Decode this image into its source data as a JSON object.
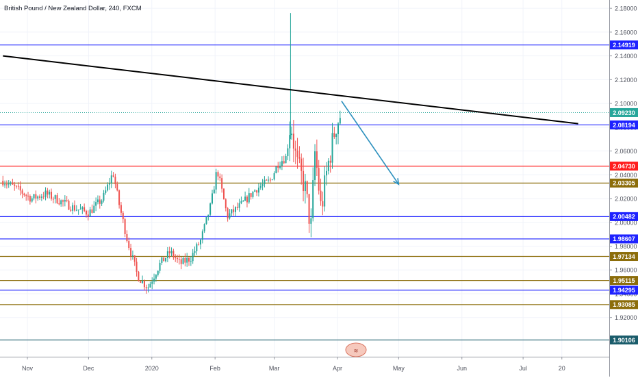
{
  "chart_data": {
    "type": "candlestick",
    "title": "British Pound / New Zealand Dollar, 240, FXCM",
    "symbol": "GBPNZD",
    "xlabel": "",
    "ylabel": "",
    "x_ticks": [
      "Nov",
      "Dec",
      "2020",
      "Feb",
      "Mar",
      "Apr",
      "May",
      "Jun",
      "Jul",
      "20"
    ],
    "y_ticks": [
      "1.92000",
      "1.94000",
      "1.96000",
      "1.98000",
      "2.00000",
      "2.02000",
      "2.04000",
      "2.06000",
      "2.08000",
      "2.10000",
      "2.12000",
      "2.14000",
      "2.16000",
      "2.18000"
    ],
    "ylim": [
      1.887,
      2.187
    ],
    "current_price": "2.09230",
    "grid": true,
    "colors": {
      "up": "#26a69a",
      "down": "#ef5350",
      "axis_bg": "#ffffff"
    },
    "horizontal_levels": [
      {
        "value": 2.14919,
        "label": "2.14919",
        "color": "#1e22ff"
      },
      {
        "value": 2.08194,
        "label": "2.08194",
        "color": "#1e22ff"
      },
      {
        "value": 2.0473,
        "label": "2.04730",
        "color": "#ff1e1e"
      },
      {
        "value": 2.03305,
        "label": "2.03305",
        "color": "#8c6d0a"
      },
      {
        "value": 2.00482,
        "label": "2.00482",
        "color": "#1e22ff"
      },
      {
        "value": 1.98607,
        "label": "1.98607",
        "color": "#1e22ff"
      },
      {
        "value": 1.97134,
        "label": "1.97134",
        "color": "#8c6d0a"
      },
      {
        "value": 1.95115,
        "label": "1.95115",
        "color": "#8c6d0a"
      },
      {
        "value": 1.94295,
        "label": "1.94295",
        "color": "#1e22ff"
      },
      {
        "value": 1.93085,
        "label": "1.93085",
        "color": "#8c6d0a"
      },
      {
        "value": 1.90106,
        "label": "1.90106",
        "color": "#1a5c6b"
      }
    ],
    "trendline": {
      "start": [
        "2019-10-20",
        2.14
      ],
      "end": [
        "2020-07-28",
        2.083
      ],
      "color": "#000000"
    },
    "projection_arrow": {
      "start": [
        "2020-04-03",
        2.102
      ],
      "end": [
        "2020-05-01",
        2.032
      ],
      "color": "#2a8fbd"
    },
    "price_path": [
      [
        "2019-10-20",
        2.035
      ],
      [
        "2019-10-27",
        2.028
      ],
      [
        "2019-11-03",
        2.02
      ],
      [
        "2019-11-10",
        2.024
      ],
      [
        "2019-11-17",
        2.018
      ],
      [
        "2019-11-24",
        2.012
      ],
      [
        "2019-12-01",
        2.008
      ],
      [
        "2019-12-08",
        2.02
      ],
      [
        "2019-12-13",
        2.042
      ],
      [
        "2019-12-16",
        2.015
      ],
      [
        "2019-12-20",
        1.985
      ],
      [
        "2019-12-25",
        1.955
      ],
      [
        "2019-12-30",
        1.945
      ],
      [
        "2020-01-05",
        1.965
      ],
      [
        "2020-01-10",
        1.975
      ],
      [
        "2020-01-15",
        1.965
      ],
      [
        "2020-01-20",
        1.97
      ],
      [
        "2020-01-25",
        1.985
      ],
      [
        "2020-01-30",
        2.015
      ],
      [
        "2020-02-02",
        2.045
      ],
      [
        "2020-02-07",
        2.005
      ],
      [
        "2020-02-14",
        2.015
      ],
      [
        "2020-02-21",
        2.028
      ],
      [
        "2020-02-28",
        2.035
      ],
      [
        "2020-03-03",
        2.05
      ],
      [
        "2020-03-07",
        2.055
      ],
      [
        "2020-03-09",
        2.085
      ],
      [
        "2020-03-12",
        2.05
      ],
      [
        "2020-03-16",
        2.03
      ],
      [
        "2020-03-19",
        1.995
      ],
      [
        "2020-03-21",
        2.06
      ],
      [
        "2020-03-24",
        2.01
      ],
      [
        "2020-03-27",
        2.045
      ],
      [
        "2020-03-31",
        2.08
      ],
      [
        "2020-04-03",
        2.093
      ]
    ]
  }
}
